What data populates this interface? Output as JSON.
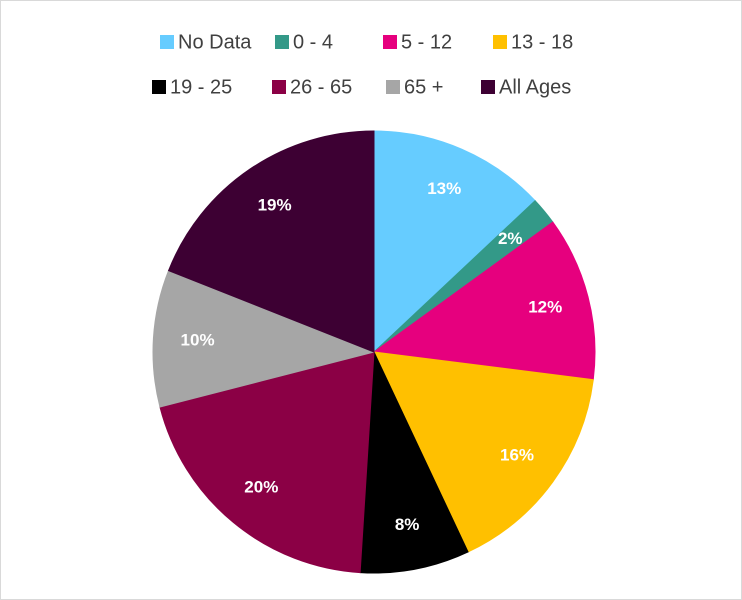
{
  "chart_data": {
    "type": "pie",
    "categories": [
      "No Data",
      "0 - 4",
      "5 - 12",
      "13 - 18",
      "19 - 25",
      "26 - 65",
      "65 +",
      "All Ages"
    ],
    "values": [
      13,
      2,
      12,
      16,
      8,
      20,
      10,
      19
    ],
    "value_labels": [
      "13%",
      "2%",
      "12%",
      "16%",
      "8%",
      "20%",
      "10%",
      "19%"
    ],
    "colors": [
      "#66ccff",
      "#339988",
      "#e6007e",
      "#ffc000",
      "#000000",
      "#8b0045",
      "#a6a6a6",
      "#3d0033"
    ],
    "legend": "top"
  }
}
